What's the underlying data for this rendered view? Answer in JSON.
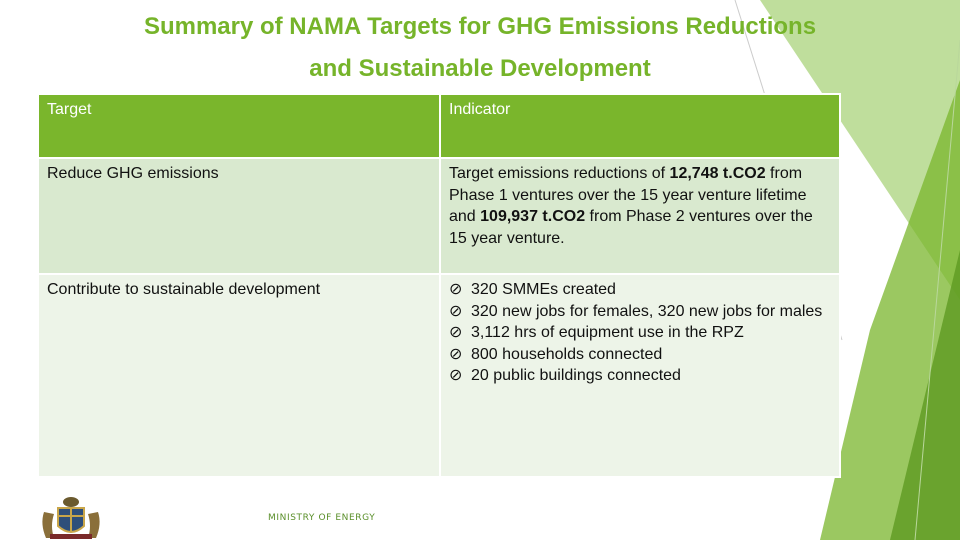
{
  "title_line1": "Summary of NAMA Targets for GHG Emissions Reductions",
  "title_line2": "and Sustainable Development",
  "table": {
    "headers": [
      "Target",
      "Indicator"
    ],
    "row1": {
      "target": "Reduce GHG emissions",
      "ind_a": "Target emissions reductions of ",
      "ind_b": "12,748 t.CO2",
      "ind_c": " from Phase 1 ventures over the 15 year venture lifetime and ",
      "ind_d": "109,937 t.CO2",
      "ind_e": " from Phase 2 ventures over the 15 year venture."
    },
    "row2": {
      "target": "Contribute to sustainable development",
      "bullet_glyph": "⊘",
      "items": [
        "320 SMMEs created",
        "320 new jobs for females, 320 new jobs for males",
        "3,112 hrs of equipment use in the RPZ",
        "800 households connected",
        "20 public buildings connected"
      ]
    }
  },
  "footer": {
    "ministry": "MINISTRY OF ENERGY",
    "logo_icon": "coat-of-arms-icon"
  },
  "colors": {
    "accent": "#7ab62c",
    "row_light": "#d9e9cf",
    "row_lighter": "#edf4e8"
  }
}
